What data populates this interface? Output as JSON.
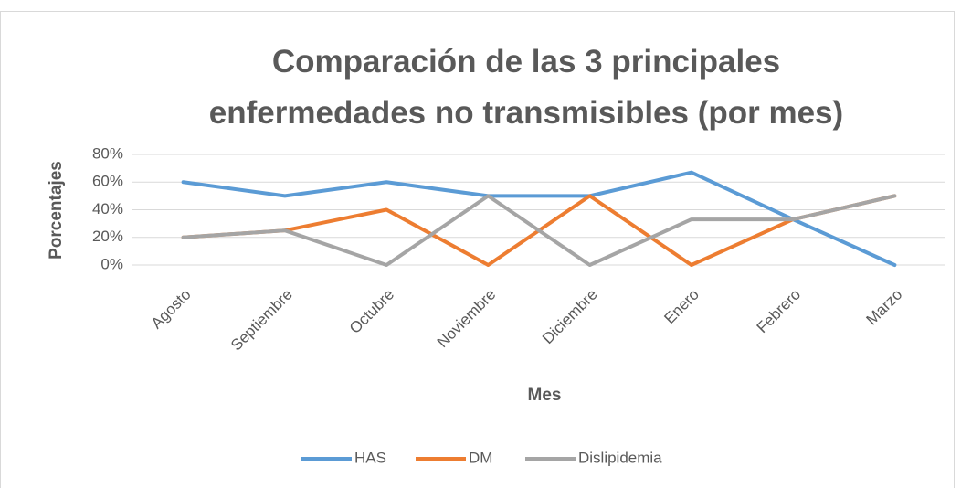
{
  "chart_data": {
    "type": "line",
    "title": "Comparación de las 3 principales enfermedades no transmisibles (por mes)",
    "x_label": "Mes",
    "y_label": "Porcentajes",
    "categories": [
      "Agosto",
      "Septiembre",
      "Octubre",
      "Noviembre",
      "Diciembre",
      "Enero",
      "Febrero",
      "Marzo"
    ],
    "series": [
      {
        "name": "HAS",
        "color": "#5b9bd5",
        "values": [
          60,
          50,
          60,
          50,
          50,
          67,
          33,
          0
        ]
      },
      {
        "name": "DM",
        "color": "#ed7d31",
        "values": [
          20,
          25,
          40,
          0,
          50,
          0,
          33,
          50
        ]
      },
      {
        "name": "Dislipidemia",
        "color": "#a5a5a5",
        "values": [
          20,
          25,
          0,
          50,
          0,
          33,
          33,
          50
        ]
      }
    ],
    "ylim": [
      0,
      80
    ],
    "yticks": [
      {
        "value": 0,
        "label": "0%"
      },
      {
        "value": 20,
        "label": "20%"
      },
      {
        "value": 40,
        "label": "40%"
      },
      {
        "value": 60,
        "label": "60%"
      },
      {
        "value": 80,
        "label": "80%"
      }
    ],
    "grid": true,
    "legend": "bottom"
  }
}
